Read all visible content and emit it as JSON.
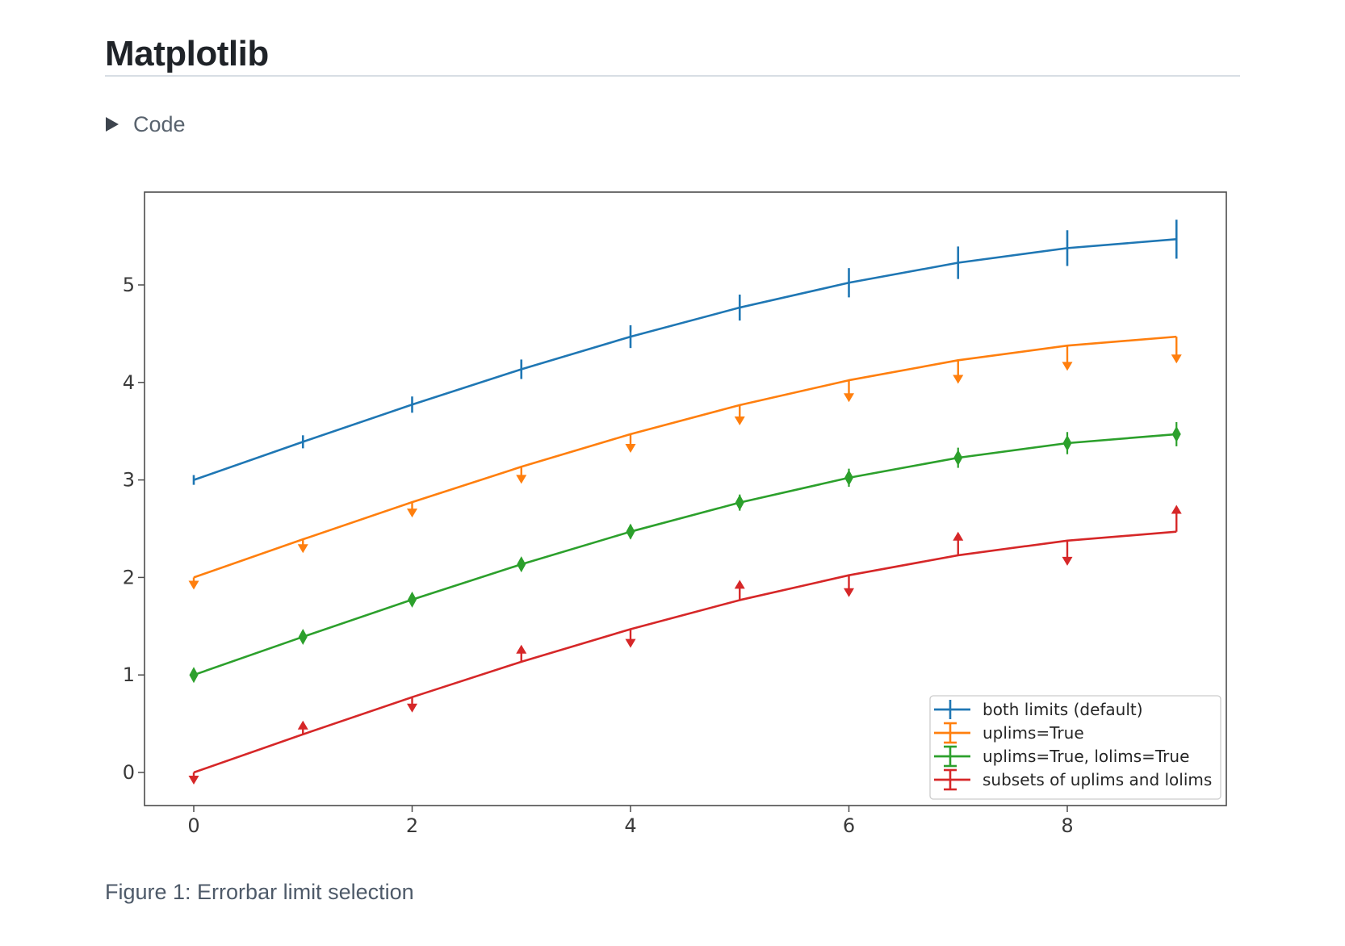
{
  "page": {
    "title": "Matplotlib",
    "code_toggle_label": "Code",
    "caption": "Figure 1: Errorbar limit selection"
  },
  "chart_data": {
    "type": "line",
    "description": "Errorbar limit selection example with upper/lower limit arrows",
    "x": [
      0,
      1,
      2,
      3,
      4,
      5,
      6,
      7,
      8,
      9
    ],
    "xticks": [
      0,
      2,
      4,
      6,
      8
    ],
    "yticks": [
      0,
      1,
      2,
      3,
      4,
      5
    ],
    "xlim": [
      -0.45,
      9.45
    ],
    "ylim": [
      -0.34,
      5.95
    ],
    "grid": false,
    "legend_position": "lower right",
    "axis_color": "#4d4d4d",
    "series": [
      {
        "name": "both limits (default)",
        "color": "#1f77b4",
        "limit_style": "both",
        "values": [
          3.0,
          3.3911,
          3.7725,
          4.135,
          4.4695,
          4.7678,
          5.0225,
          5.2275,
          5.3776,
          5.4692
        ],
        "yerr": [
          0.05,
          0.0667,
          0.0833,
          0.1,
          0.1167,
          0.1333,
          0.15,
          0.1667,
          0.1833,
          0.2
        ]
      },
      {
        "name": "uplims=True",
        "color": "#ff7f0e",
        "limit_style": "uplims",
        "values": [
          2.0,
          2.3911,
          2.7725,
          3.135,
          3.4695,
          3.7678,
          4.0225,
          4.2275,
          4.3776,
          4.4692
        ],
        "yerr": [
          0.05,
          0.0667,
          0.0833,
          0.1,
          0.1167,
          0.1333,
          0.15,
          0.1667,
          0.1833,
          0.2
        ]
      },
      {
        "name": "uplims=True, lolims=True",
        "color": "#2ca02c",
        "limit_style": "uplims+lolims",
        "values": [
          1.0,
          1.3911,
          1.7725,
          2.135,
          2.4695,
          2.7678,
          3.0225,
          3.2275,
          3.3776,
          3.4692
        ],
        "yerr": [
          0.05,
          0.0667,
          0.0833,
          0.1,
          0.1167,
          0.1333,
          0.15,
          0.1667,
          0.1833,
          0.2
        ]
      },
      {
        "name": "subsets of uplims and lolims",
        "color": "#d62728",
        "limit_style": "alternating",
        "uplims": [
          true,
          false,
          true,
          false,
          true,
          false,
          true,
          false,
          true,
          false
        ],
        "lolims": [
          false,
          true,
          false,
          true,
          false,
          true,
          false,
          true,
          false,
          true
        ],
        "values": [
          0.0,
          0.3911,
          0.7725,
          1.135,
          1.4695,
          1.7678,
          2.0225,
          2.2275,
          2.3776,
          2.4692
        ],
        "yerr": [
          0.05,
          0.0667,
          0.0833,
          0.1,
          0.1167,
          0.1333,
          0.15,
          0.1667,
          0.1833,
          0.2
        ]
      }
    ]
  }
}
